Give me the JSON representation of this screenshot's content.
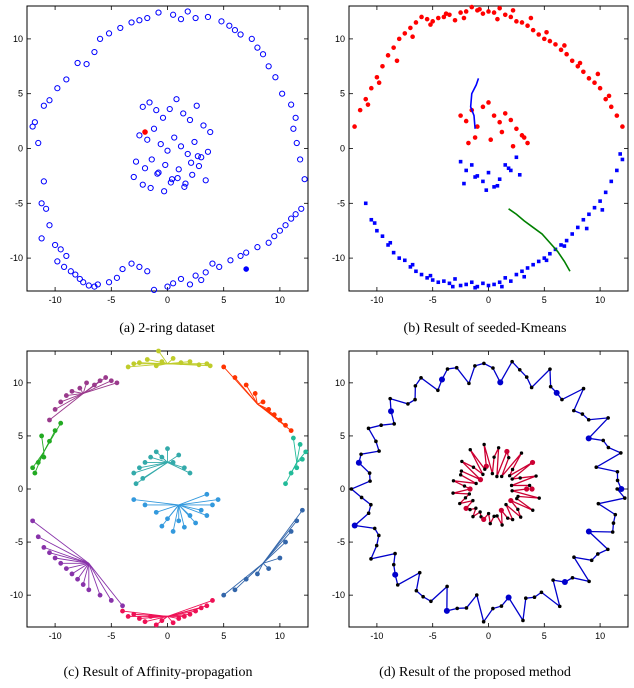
{
  "figure": {
    "panels": [
      {
        "caption": "(a) 2-ring dataset"
      },
      {
        "caption": "(b) Result of seeded-Kmeans"
      },
      {
        "caption": "(c) Result of Affinity-propagation"
      },
      {
        "caption": "(d) Result of the proposed method"
      }
    ]
  },
  "chart_data": [
    {
      "type": "scatter",
      "caption": "(a) 2-ring dataset",
      "xlim": [
        -12.5,
        12.5
      ],
      "ylim": [
        -13,
        13
      ],
      "xticks": [
        -10,
        -5,
        0,
        5,
        10
      ],
      "yticks": [
        10,
        5,
        0,
        -5,
        -10
      ],
      "colors": {
        "points": "#0000ff",
        "seed": "#ff0000"
      },
      "series": [
        {
          "x": [
            -12,
            -11.5,
            -11,
            -11.2,
            -10.8,
            -10.5,
            -11.2,
            -10,
            -9.5,
            -9,
            -9.8,
            -9.2,
            -8.6,
            -8.2,
            -7.8,
            -7.5,
            -7,
            -6.5,
            -6.2,
            -5.2,
            -4.5,
            -4,
            -3.2,
            -2.5,
            -1.8,
            -1.2,
            0,
            0.5,
            1.2,
            2,
            2.5,
            3,
            3.4,
            4,
            4.6,
            5.6,
            6.5,
            7,
            8,
            9,
            9.5,
            10,
            10.5,
            11,
            11.4,
            11.9,
            12.2,
            11.8,
            11.5,
            11.2,
            11.4,
            11,
            10.2,
            9.6,
            9,
            8.5,
            8,
            7.5,
            6.5,
            6,
            5.5,
            4.8,
            3.6,
            2.5,
            1.8,
            1.2,
            0.5,
            -0.8,
            -1.8,
            -2.5,
            -3.2,
            -4.2,
            -5.2,
            -6,
            -6.5,
            -7.2,
            -8,
            -9,
            -9.8,
            -10.5,
            -11,
            -11.8
          ],
          "y": [
            2,
            0.5,
            -3,
            -5,
            -5.5,
            -7,
            -8.2,
            -8.8,
            -9.2,
            -9.8,
            -10.3,
            -10.8,
            -11.2,
            -11.5,
            -11.9,
            -12.2,
            -12.5,
            -12.6,
            -12.4,
            -12.2,
            -11.8,
            -11,
            -10.5,
            -10.8,
            -11.2,
            -12.9,
            -12.6,
            -12.3,
            -11.9,
            -12.4,
            -11.6,
            -12,
            -11.3,
            -10.5,
            -10.8,
            -10.2,
            -9.8,
            -9.5,
            -9,
            -8.6,
            -8,
            -7.5,
            -7,
            -6.4,
            -6,
            -5.5,
            -2.8,
            -1,
            0.5,
            1.8,
            2.8,
            4,
            5,
            6.5,
            7.5,
            8.6,
            9.2,
            10,
            10.4,
            10.8,
            11.2,
            11.6,
            12,
            11.9,
            12.5,
            11.8,
            12.2,
            12.4,
            11.9,
            11.7,
            11.5,
            11,
            10.5,
            10,
            8.8,
            7.7,
            7.8,
            6.3,
            5.5,
            4.4,
            3.9,
            2.4
          ]
        },
        {
          "x": [
            -2.2,
            -1.6,
            -1,
            -0.4,
            0.2,
            0.8,
            1.4,
            2,
            2.6,
            3.2,
            3.8,
            -2.5,
            -1.8,
            -1.2,
            -0.6,
            0,
            0.6,
            1.2,
            1.8,
            2.4,
            3,
            3.6,
            -2.8,
            -2,
            -1.4,
            -0.8,
            -0.2,
            0.4,
            1,
            1.6,
            2.2,
            2.8,
            3.4,
            -3,
            -2.2,
            -1.5,
            -0.9,
            -0.3,
            0.3,
            0.9,
            1.5,
            2.1,
            2.7
          ],
          "y": [
            3.8,
            4.2,
            3.5,
            2.8,
            3.6,
            4.5,
            3.2,
            2.6,
            3.9,
            2.1,
            1.5,
            1.2,
            0.8,
            1.8,
            0.4,
            -0.2,
            1,
            0.2,
            -0.5,
            0.6,
            -0.8,
            -0.3,
            -1.2,
            -1.8,
            -1,
            -2.2,
            -1.5,
            -2.8,
            -1.9,
            -3.2,
            -2.4,
            -1.6,
            -2.9,
            -2.6,
            -3.3,
            -3.6,
            -2.3,
            -3.9,
            -3.1,
            -2.7,
            -3.5,
            -1.3,
            -0.7
          ]
        }
      ],
      "seed_points": [
        {
          "x": -2,
          "y": 1.5
        },
        {
          "x": 7,
          "y": -11
        }
      ]
    },
    {
      "type": "scatter",
      "caption": "(b) Result of seeded-Kmeans",
      "xlim": [
        -12.5,
        12.5
      ],
      "ylim": [
        -13,
        13
      ],
      "xticks": [
        -10,
        -5,
        0,
        5,
        10
      ],
      "yticks": [
        10,
        5,
        0,
        -5,
        -10
      ],
      "colors": {
        "cluster1": "#ff0000",
        "cluster2": "#0000ff",
        "path1": "#0000ff",
        "path2": "#008000"
      },
      "series": [
        {
          "marker": "circle",
          "x": [
            -12,
            -11.5,
            -11,
            -10.5,
            -10,
            -9.5,
            -9,
            -8.5,
            -8,
            -7.5,
            -7,
            -6.5,
            -6,
            -5.5,
            -5,
            -4.5,
            -4,
            -3.5,
            -3,
            -2.5,
            -2,
            -1.5,
            -1,
            -0.5,
            0,
            0.5,
            1,
            1.5,
            2,
            2.5,
            3,
            3.5,
            4,
            4.5,
            5,
            5.5,
            6,
            6.5,
            7,
            7.5,
            8,
            8.5,
            9,
            9.5,
            10,
            10.5,
            11,
            11.5,
            12,
            -10.8,
            -9.8,
            -8.2,
            -6.8,
            -5.2,
            -3.8,
            -2.2,
            -0.8,
            0.8,
            2.2,
            3.8,
            5.2,
            6.8,
            8.2,
            9.8,
            10.8,
            -2.5,
            -2,
            -1.5,
            -1,
            -0.5,
            0,
            0.5,
            1,
            1.5,
            2,
            2.5,
            3,
            3.5,
            -1.8,
            -1.2,
            0.2,
            1.2,
            2.2,
            3.2
          ],
          "y": [
            2,
            3.5,
            4.5,
            5.5,
            6.5,
            7.5,
            8.5,
            9.2,
            10,
            10.5,
            11,
            11.5,
            12,
            11.8,
            11.6,
            11.9,
            12,
            12.2,
            11.7,
            12.4,
            12.5,
            12.9,
            12.6,
            12.3,
            12.5,
            12.4,
            12.8,
            12.2,
            12,
            11.6,
            11.5,
            11.2,
            10.8,
            10.4,
            10,
            9.8,
            9.5,
            9,
            8.6,
            8,
            7.5,
            7,
            6.4,
            6,
            5.5,
            4.5,
            3.8,
            3,
            2,
            4,
            6,
            8,
            10.2,
            11.3,
            12.3,
            11.9,
            12.7,
            11.8,
            12.6,
            11.9,
            10.6,
            9.4,
            7.8,
            6.8,
            4.8,
            3,
            2.5,
            3.5,
            2,
            3.8,
            4.2,
            3,
            2.4,
            3.2,
            2.6,
            1.8,
            1.2,
            0.5,
            0.5,
            1,
            0.8,
            1.5,
            0.2,
            1
          ]
        },
        {
          "marker": "square",
          "x": [
            -11,
            -10.5,
            -10,
            -9.5,
            -9,
            -8.5,
            -8,
            -7.5,
            -7,
            -6.5,
            -6,
            -5.5,
            -5,
            -4.5,
            -4,
            -3.5,
            -3,
            -2.5,
            -2,
            -1.5,
            -1,
            -0.5,
            0,
            0.5,
            1,
            1.5,
            2,
            2.5,
            3,
            3.5,
            4,
            4.5,
            5,
            5.5,
            6,
            6.5,
            7,
            7.5,
            8,
            8.5,
            9,
            9.5,
            10,
            10.5,
            11,
            11.5,
            12,
            11.8,
            -2.5,
            -2,
            -1.5,
            -1,
            -0.5,
            0,
            0.5,
            1,
            1.5,
            2,
            2.5,
            -2.2,
            -1.2,
            -0.2,
            0.8,
            1.8,
            2.8,
            -10.2,
            -8.8,
            -6.8,
            -5.2,
            -3.2,
            -1.2,
            1.2,
            3.2,
            5.2,
            6.8,
            8.8,
            10.2
          ],
          "y": [
            -5,
            -6.5,
            -7.5,
            -8,
            -8.8,
            -9.5,
            -10,
            -10.2,
            -10.8,
            -11.2,
            -11.5,
            -11.8,
            -12,
            -12.2,
            -12.1,
            -12.3,
            -11.9,
            -12.5,
            -12.4,
            -12.2,
            -12.6,
            -12.3,
            -12.5,
            -12.4,
            -12.2,
            -11.8,
            -12.1,
            -11.5,
            -11.2,
            -10.9,
            -10.6,
            -10.3,
            -10,
            -9.6,
            -9.2,
            -8.8,
            -8.4,
            -7.8,
            -7.2,
            -6.5,
            -6,
            -5.4,
            -4.8,
            -4,
            -3,
            -2,
            -1,
            -0.5,
            -1.2,
            -2,
            -1.5,
            -2.5,
            -3,
            -2.2,
            -3.5,
            -2.8,
            -1.5,
            -2,
            -0.8,
            -3.2,
            -2.6,
            -3.8,
            -3.4,
            -1.8,
            -2.4,
            -6.8,
            -8.6,
            -10.6,
            -11.6,
            -12.6,
            -12.7,
            -12.6,
            -11.7,
            -10.2,
            -8.9,
            -7.3,
            -5.6
          ]
        }
      ],
      "paths": [
        {
          "x": [
            -1.2,
            -1.3,
            -1.6,
            -1.5,
            -1.1,
            -0.9
          ],
          "y": [
            1.8,
            3,
            3.8,
            5,
            5.8,
            6.4
          ]
        },
        {
          "x": [
            1.8,
            2.5,
            3.2,
            4,
            4.8,
            5.5,
            6.2,
            6.8,
            7.3
          ],
          "y": [
            -5.5,
            -6,
            -6.6,
            -7.2,
            -7.8,
            -8.6,
            -9.4,
            -10.3,
            -11.2
          ]
        }
      ]
    },
    {
      "type": "scatter",
      "caption": "(c) Result of Affinity-propagation",
      "xlim": [
        -12.5,
        12.5
      ],
      "ylim": [
        -13,
        13
      ],
      "xticks": [
        -10,
        -5,
        0,
        5,
        10
      ],
      "yticks": [
        10,
        5,
        0,
        -5,
        -10
      ],
      "clusters": [
        {
          "color": "#0033cc",
          "hub": [
            -0.5,
            0
          ],
          "x": [],
          "y": []
        },
        {
          "color": "#bfcc2a",
          "hub": [
            0,
            11.8
          ],
          "x": [
            -3.5,
            -3,
            -2.5,
            -1.8,
            -1,
            -0.5,
            0.5,
            1.2,
            2,
            2.8,
            3.5,
            3.8,
            -0.8
          ],
          "y": [
            11.5,
            11.8,
            11.9,
            12.2,
            11.6,
            12,
            12.3,
            11.9,
            12,
            11.7,
            11.8,
            11.6,
            13
          ]
        },
        {
          "color": "#9a3a8c",
          "hub": [
            -7.5,
            9
          ],
          "x": [
            -10.5,
            -10,
            -9.5,
            -9,
            -8.5,
            -7.8,
            -7.2,
            -6.5,
            -6,
            -5.5,
            -5,
            -4.5
          ],
          "y": [
            6.5,
            7.5,
            8.2,
            8.8,
            9.2,
            9.5,
            10,
            9.8,
            10.2,
            10.5,
            10.2,
            10
          ]
        },
        {
          "color": "#ff3300",
          "hub": [
            8,
            8
          ],
          "x": [
            5,
            6,
            7,
            7.8,
            8.5,
            9,
            9.5,
            10,
            10.5,
            11
          ],
          "y": [
            11.5,
            10.5,
            9.8,
            9,
            8.2,
            7.5,
            7,
            6.5,
            6,
            5.5
          ]
        },
        {
          "color": "#22aa22",
          "hub": [
            -11,
            3.5
          ],
          "x": [
            -12,
            -11.8,
            -11.5,
            -11,
            -10.5,
            -10,
            -9.5,
            -11.2
          ],
          "y": [
            2,
            1.5,
            2.5,
            3,
            4.5,
            5.5,
            6.2,
            5
          ]
        },
        {
          "color": "#22bb99",
          "hub": [
            11.5,
            2.5
          ],
          "x": [
            10.5,
            11,
            11.5,
            12,
            12.3,
            11.8,
            11.2
          ],
          "y": [
            0.5,
            1.5,
            2,
            2.8,
            3.5,
            4.2,
            4.8
          ]
        },
        {
          "color": "#33aaaa",
          "hub": [
            0,
            2.5
          ],
          "x": [
            -3,
            -2.5,
            -2,
            -1.5,
            -1,
            -0.5,
            0,
            0.5,
            1,
            1.5,
            2,
            -2.8,
            -2.2
          ],
          "y": [
            1.5,
            2,
            2.5,
            3,
            3.5,
            3,
            3.8,
            2.5,
            3.2,
            2,
            1.5,
            0.5,
            1
          ]
        },
        {
          "color": "#3399dd",
          "hub": [
            1,
            -1.5
          ],
          "x": [
            -3,
            -2,
            -1,
            0,
            1,
            2,
            3,
            4,
            4.5,
            3.5,
            -0.5,
            0.5,
            1.5,
            2.5,
            3.5
          ],
          "y": [
            -1,
            -1.5,
            -2.2,
            -2.8,
            -3,
            -2.5,
            -2,
            -1.5,
            -1,
            -0.5,
            -3.5,
            -4,
            -3.6,
            -3.2,
            -2.5
          ]
        },
        {
          "color": "#3366aa",
          "hub": [
            8.5,
            -7
          ],
          "x": [
            5,
            6,
            7,
            8,
            9,
            10,
            10.5,
            11,
            11.5,
            12
          ],
          "y": [
            -10,
            -9.5,
            -8.5,
            -8,
            -7.5,
            -6.5,
            -5,
            -4,
            -3,
            -2
          ]
        },
        {
          "color": "#8833aa",
          "hub": [
            -7,
            -7
          ],
          "x": [
            -12,
            -11.5,
            -11,
            -10.5,
            -10,
            -9.5,
            -9,
            -8.5,
            -8,
            -7.5,
            -7,
            -6,
            -5,
            -4
          ],
          "y": [
            -3,
            -4.5,
            -5.5,
            -6,
            -6.5,
            -7,
            -7.5,
            -8,
            -8.5,
            -9,
            -9.5,
            -10,
            -10.5,
            -11
          ]
        },
        {
          "color": "#ee1155",
          "hub": [
            0,
            -12
          ],
          "x": [
            -4,
            -3.5,
            -3,
            -2.5,
            -2,
            -1.5,
            -1,
            -0.5,
            0.5,
            1,
            1.5,
            2,
            2.5,
            3,
            3.5,
            4
          ],
          "y": [
            -11.5,
            -12,
            -11.8,
            -12.2,
            -12.5,
            -12,
            -12.8,
            -12.4,
            -12.6,
            -12.2,
            -12,
            -11.8,
            -11.5,
            -11.2,
            -11,
            -10.5
          ]
        }
      ]
    },
    {
      "type": "scatter",
      "caption": "(d) Result of the proposed method",
      "xlim": [
        -12.5,
        12.5
      ],
      "ylim": [
        -13,
        13
      ],
      "xticks": [
        -10,
        -5,
        0,
        5,
        10
      ],
      "yticks": [
        10,
        5,
        0,
        -5,
        -10
      ],
      "colors": {
        "outer": "#0000cc",
        "inner": "#cc0033",
        "nodes": "#000000"
      },
      "series": [
        {
          "name": "",
          "path": "outer"
        },
        {
          "name": "",
          "path": "inner"
        }
      ]
    }
  ]
}
